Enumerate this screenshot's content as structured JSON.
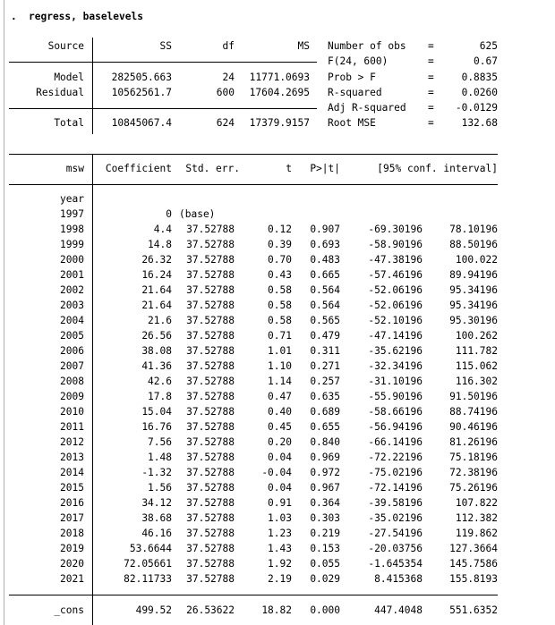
{
  "command": {
    "prompt": ".",
    "text": "regress, baselevels"
  },
  "anova": {
    "headers": {
      "source": "Source",
      "ss": "SS",
      "df": "df",
      "ms": "MS"
    },
    "rows": [
      {
        "source": "Model",
        "ss": "282505.663",
        "df": "24",
        "ms": "11771.0693"
      },
      {
        "source": "Residual",
        "ss": "10562561.7",
        "df": "600",
        "ms": "17604.2695"
      },
      {
        "source": "Total",
        "ss": "10845067.4",
        "df": "624",
        "ms": "17379.9157"
      }
    ]
  },
  "fit_stats": [
    {
      "label": "Number of obs",
      "eq": "=",
      "value": "625"
    },
    {
      "label": "F(24, 600)",
      "eq": "=",
      "value": "0.67"
    },
    {
      "label": "Prob > F",
      "eq": "=",
      "value": "0.8835"
    },
    {
      "label": "R-squared",
      "eq": "=",
      "value": "0.0260"
    },
    {
      "label": "Adj R-squared",
      "eq": "=",
      "value": "-0.0129"
    },
    {
      "label": "Root MSE",
      "eq": "=",
      "value": "132.68"
    }
  ],
  "coef_table": {
    "headers": {
      "var": "msw",
      "coef": "Coefficient",
      "se": "Std. err.",
      "t": "t",
      "p": "P>|t|",
      "ci": "[95% conf. interval]"
    },
    "factor_label": "year",
    "rows": [
      {
        "label": "1997",
        "coef": "0",
        "se": "(base)",
        "t": "",
        "p": "",
        "lo": "",
        "hi": ""
      },
      {
        "label": "1998",
        "coef": "4.4",
        "se": "37.52788",
        "t": "0.12",
        "p": "0.907",
        "lo": "-69.30196",
        "hi": "78.10196"
      },
      {
        "label": "1999",
        "coef": "14.8",
        "se": "37.52788",
        "t": "0.39",
        "p": "0.693",
        "lo": "-58.90196",
        "hi": "88.50196"
      },
      {
        "label": "2000",
        "coef": "26.32",
        "se": "37.52788",
        "t": "0.70",
        "p": "0.483",
        "lo": "-47.38196",
        "hi": "100.022"
      },
      {
        "label": "2001",
        "coef": "16.24",
        "se": "37.52788",
        "t": "0.43",
        "p": "0.665",
        "lo": "-57.46196",
        "hi": "89.94196"
      },
      {
        "label": "2002",
        "coef": "21.64",
        "se": "37.52788",
        "t": "0.58",
        "p": "0.564",
        "lo": "-52.06196",
        "hi": "95.34196"
      },
      {
        "label": "2003",
        "coef": "21.64",
        "se": "37.52788",
        "t": "0.58",
        "p": "0.564",
        "lo": "-52.06196",
        "hi": "95.34196"
      },
      {
        "label": "2004",
        "coef": "21.6",
        "se": "37.52788",
        "t": "0.58",
        "p": "0.565",
        "lo": "-52.10196",
        "hi": "95.30196"
      },
      {
        "label": "2005",
        "coef": "26.56",
        "se": "37.52788",
        "t": "0.71",
        "p": "0.479",
        "lo": "-47.14196",
        "hi": "100.262"
      },
      {
        "label": "2006",
        "coef": "38.08",
        "se": "37.52788",
        "t": "1.01",
        "p": "0.311",
        "lo": "-35.62196",
        "hi": "111.782"
      },
      {
        "label": "2007",
        "coef": "41.36",
        "se": "37.52788",
        "t": "1.10",
        "p": "0.271",
        "lo": "-32.34196",
        "hi": "115.062"
      },
      {
        "label": "2008",
        "coef": "42.6",
        "se": "37.52788",
        "t": "1.14",
        "p": "0.257",
        "lo": "-31.10196",
        "hi": "116.302"
      },
      {
        "label": "2009",
        "coef": "17.8",
        "se": "37.52788",
        "t": "0.47",
        "p": "0.635",
        "lo": "-55.90196",
        "hi": "91.50196"
      },
      {
        "label": "2010",
        "coef": "15.04",
        "se": "37.52788",
        "t": "0.40",
        "p": "0.689",
        "lo": "-58.66196",
        "hi": "88.74196"
      },
      {
        "label": "2011",
        "coef": "16.76",
        "se": "37.52788",
        "t": "0.45",
        "p": "0.655",
        "lo": "-56.94196",
        "hi": "90.46196"
      },
      {
        "label": "2012",
        "coef": "7.56",
        "se": "37.52788",
        "t": "0.20",
        "p": "0.840",
        "lo": "-66.14196",
        "hi": "81.26196"
      },
      {
        "label": "2013",
        "coef": "1.48",
        "se": "37.52788",
        "t": "0.04",
        "p": "0.969",
        "lo": "-72.22196",
        "hi": "75.18196"
      },
      {
        "label": "2014",
        "coef": "-1.32",
        "se": "37.52788",
        "t": "-0.04",
        "p": "0.972",
        "lo": "-75.02196",
        "hi": "72.38196"
      },
      {
        "label": "2015",
        "coef": "1.56",
        "se": "37.52788",
        "t": "0.04",
        "p": "0.967",
        "lo": "-72.14196",
        "hi": "75.26196"
      },
      {
        "label": "2016",
        "coef": "34.12",
        "se": "37.52788",
        "t": "0.91",
        "p": "0.364",
        "lo": "-39.58196",
        "hi": "107.822"
      },
      {
        "label": "2017",
        "coef": "38.68",
        "se": "37.52788",
        "t": "1.03",
        "p": "0.303",
        "lo": "-35.02196",
        "hi": "112.382"
      },
      {
        "label": "2018",
        "coef": "46.16",
        "se": "37.52788",
        "t": "1.23",
        "p": "0.219",
        "lo": "-27.54196",
        "hi": "119.862"
      },
      {
        "label": "2019",
        "coef": "53.6644",
        "se": "37.52788",
        "t": "1.43",
        "p": "0.153",
        "lo": "-20.03756",
        "hi": "127.3664"
      },
      {
        "label": "2020",
        "coef": "72.05661",
        "se": "37.52788",
        "t": "1.92",
        "p": "0.055",
        "lo": "-1.645354",
        "hi": "145.7586"
      },
      {
        "label": "2021",
        "coef": "82.11733",
        "se": "37.52788",
        "t": "2.19",
        "p": "0.029",
        "lo": "8.415368",
        "hi": "155.8193"
      }
    ],
    "cons": {
      "label": "_cons",
      "coef": "499.52",
      "se": "26.53622",
      "t": "18.82",
      "p": "0.000",
      "lo": "447.4048",
      "hi": "551.6352"
    }
  }
}
